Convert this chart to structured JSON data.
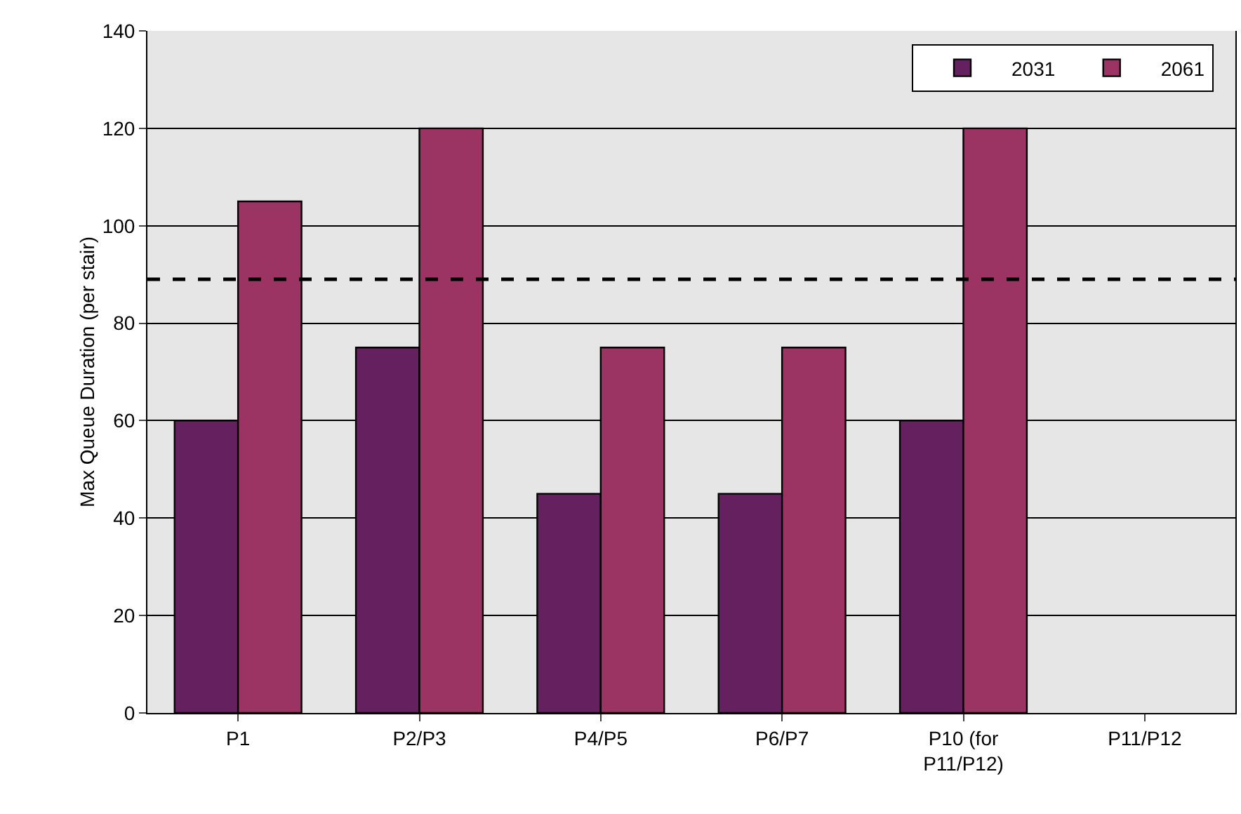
{
  "chart_data": {
    "type": "bar",
    "ylabel": "Max Queue Duration (per stair)",
    "categories": [
      "P1",
      "P2/P3",
      "P4/P5",
      "P6/P7",
      "P10 (for\nP11/P12)",
      "P11/P12"
    ],
    "series": [
      {
        "name": "2031",
        "color": "#64205f",
        "values": [
          60,
          75,
          45,
          45,
          60,
          null
        ]
      },
      {
        "name": "2061",
        "color": "#9b3463",
        "values": [
          105,
          120,
          75,
          75,
          120,
          null
        ]
      }
    ],
    "ylim": [
      0,
      140
    ],
    "yticks": [
      0,
      20,
      40,
      60,
      80,
      100,
      120,
      140
    ],
    "grid": "y",
    "legend": "top right",
    "ref_lines": [
      {
        "axis": "y",
        "value": 89,
        "color": "#000000",
        "line_style": "dashed"
      }
    ]
  }
}
